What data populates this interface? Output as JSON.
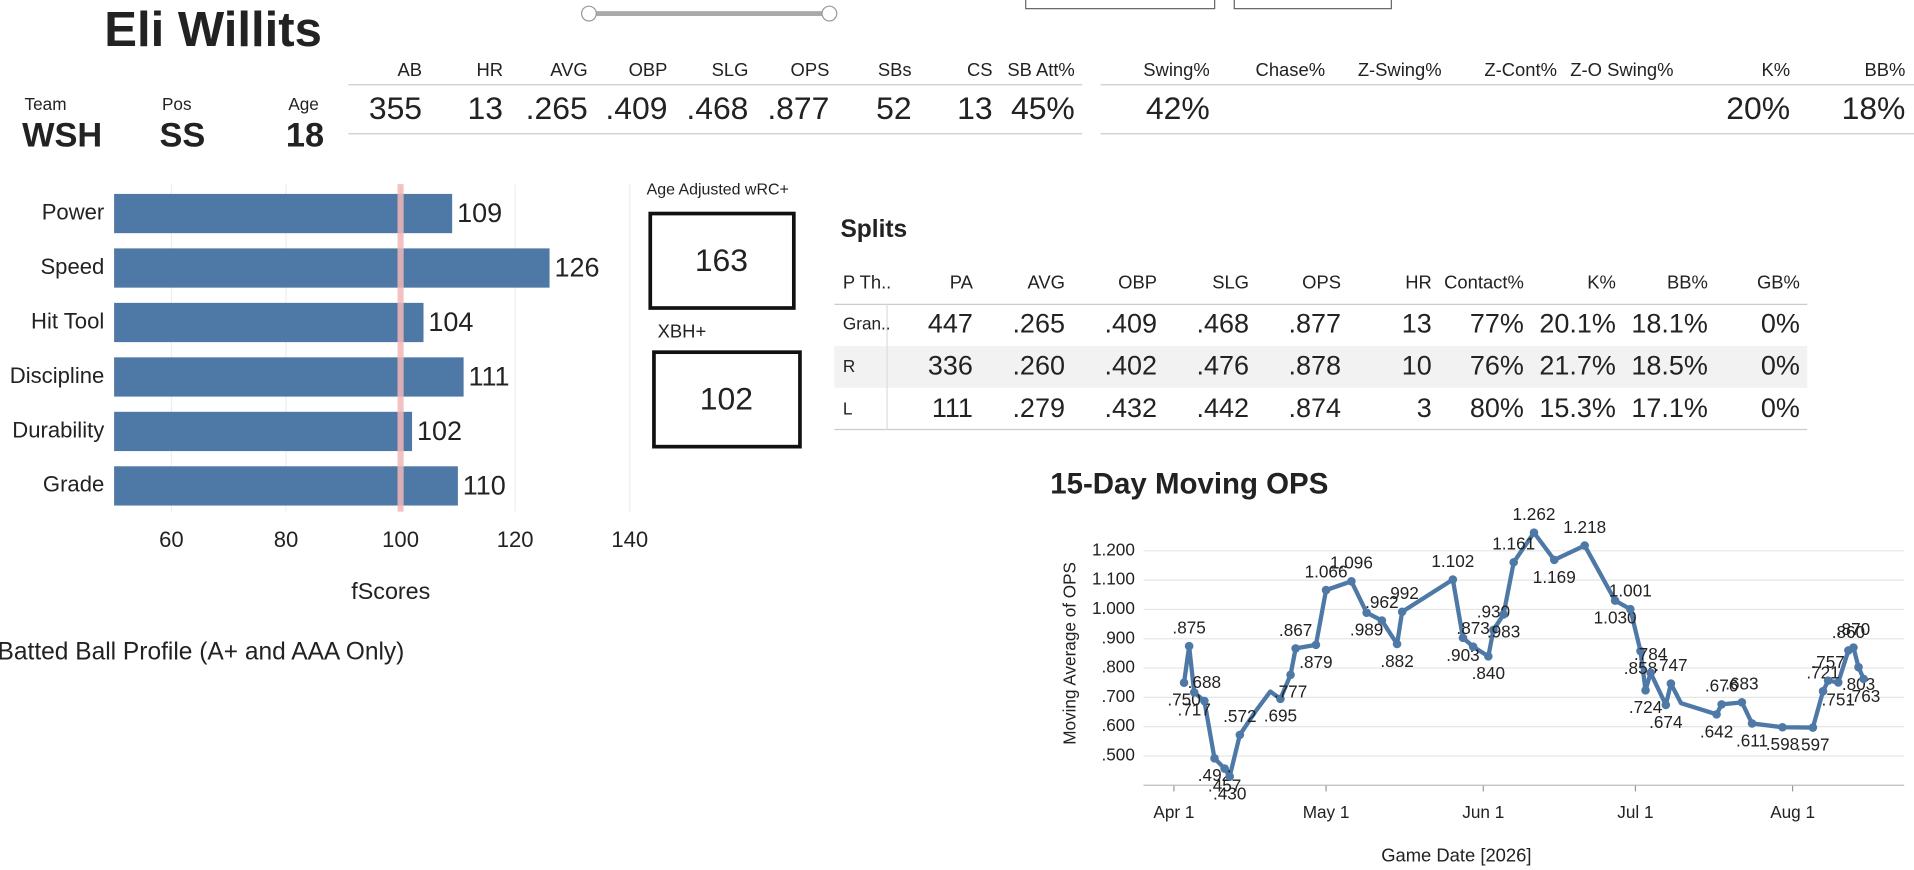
{
  "header": {
    "name": "Eli Willits",
    "team_label": "Team",
    "team": "WSH",
    "pos_label": "Pos",
    "pos": "SS",
    "age_label": "Age",
    "age": "18"
  },
  "batting": {
    "headers": [
      "AB",
      "HR",
      "AVG",
      "OBP",
      "SLG",
      "OPS",
      "SBs",
      "CS",
      "SB Att%"
    ],
    "values": [
      "355",
      "13",
      ".265",
      ".409",
      ".468",
      ".877",
      "52",
      "13",
      "45%"
    ]
  },
  "plate_discipline": {
    "headers": [
      "Swing%",
      "Chase%",
      "Z-Swing%",
      "Z-Cont%",
      "Z-O Swing%",
      "K%",
      "BB%"
    ],
    "values": [
      "42%",
      null,
      null,
      null,
      null,
      "20%",
      "18%"
    ]
  },
  "boxes": [
    {
      "label": "Age Adjusted wRC+",
      "value": "163"
    },
    {
      "label": "XBH+",
      "value": "102"
    }
  ],
  "splits": {
    "title": "Splits",
    "headers": [
      "P Th..",
      "PA",
      "AVG",
      "OBP",
      "SLG",
      "OPS",
      "HR",
      "Contact%",
      "K%",
      "BB%",
      "GB%"
    ],
    "rows": [
      [
        "Gran..",
        "447",
        ".265",
        ".409",
        ".468",
        ".877",
        "13",
        "77%",
        "20.1%",
        "18.1%",
        "0%"
      ],
      [
        "R",
        "336",
        ".260",
        ".402",
        ".476",
        ".878",
        "10",
        "76%",
        "21.7%",
        "18.5%",
        "0%"
      ],
      [
        "L",
        "111",
        ".279",
        ".432",
        ".442",
        ".874",
        "3",
        "80%",
        "15.3%",
        "17.1%",
        "0%"
      ]
    ]
  },
  "batted_ball_title": "Batted Ball Profile (A+ and AAA Only)",
  "chart_data": [
    {
      "type": "bar",
      "orientation": "horizontal",
      "categories": [
        "Power",
        "Speed",
        "Hit Tool",
        "Discipline",
        "Durability",
        "Grade"
      ],
      "values": [
        109,
        126,
        104,
        111,
        102,
        110
      ],
      "color": "#4e79a7",
      "xlim": [
        50,
        150
      ],
      "xticks": [
        60,
        80,
        100,
        120,
        140
      ],
      "x_label": "fScores",
      "reference_line": {
        "value": 100,
        "color": "#f2b8b8"
      },
      "grid": true
    },
    {
      "type": "line",
      "title": "15-Day Moving OPS",
      "x_label": "Game Date [2026]",
      "y_label": "Moving Average of OPS",
      "color": "#4e79a7",
      "grid": true,
      "x": [
        "2026-04-03",
        "2026-04-04",
        "2026-04-05",
        "2026-04-07",
        "2026-04-09",
        "2026-04-11",
        "2026-04-12",
        "2026-04-14",
        "2026-04-17",
        "2026-04-20",
        "2026-04-22",
        "2026-04-24",
        "2026-04-25",
        "2026-04-29",
        "2026-05-01",
        "2026-05-06",
        "2026-05-09",
        "2026-05-12",
        "2026-05-15",
        "2026-05-16",
        "2026-05-26",
        "2026-05-28",
        "2026-05-30",
        "2026-06-02",
        "2026-06-03",
        "2026-06-05",
        "2026-06-07",
        "2026-06-11",
        "2026-06-15",
        "2026-06-21",
        "2026-06-27",
        "2026-06-30",
        "2026-07-02",
        "2026-07-03",
        "2026-07-04",
        "2026-07-07",
        "2026-07-08",
        "2026-07-10",
        "2026-07-17",
        "2026-07-18",
        "2026-07-22",
        "2026-07-24",
        "2026-07-30",
        "2026-08-05",
        "2026-08-07",
        "2026-08-08",
        "2026-08-10",
        "2026-08-12",
        "2026-08-13",
        "2026-08-14",
        "2026-08-15"
      ],
      "values": [
        0.75,
        0.875,
        0.717,
        0.688,
        0.492,
        0.457,
        0.43,
        0.572,
        0.65,
        0.72,
        0.695,
        0.777,
        0.867,
        0.879,
        1.066,
        1.096,
        0.989,
        0.962,
        0.882,
        0.992,
        1.102,
        0.903,
        0.873,
        0.84,
        0.93,
        0.983,
        1.161,
        1.262,
        1.169,
        1.218,
        1.03,
        1.001,
        0.858,
        0.724,
        0.784,
        0.674,
        0.747,
        0.68,
        0.642,
        0.676,
        0.683,
        0.611,
        0.598,
        0.597,
        0.721,
        0.757,
        0.751,
        0.86,
        0.87,
        0.803,
        0.763
      ],
      "value_labels": [
        ".750",
        ".875",
        ".717",
        ".688",
        ".492",
        ".457",
        ".430",
        ".572",
        null,
        null,
        ".695",
        ".777",
        ".867",
        ".879",
        "1.066",
        "1.096",
        ".989",
        ".962",
        ".882",
        ".992",
        "1.102",
        ".903",
        ".873",
        ".840",
        ".930",
        ".983",
        "1.161",
        "1.262",
        "1.169",
        "1.218",
        "1.030",
        "1.001",
        ".858",
        ".724",
        ".784",
        ".674",
        ".747",
        null,
        ".642",
        ".676",
        ".683",
        ".611",
        ".598",
        ".597",
        ".721",
        ".757",
        ".751",
        ".860",
        ".870",
        ".803",
        ".763"
      ],
      "xlim": [
        "2026-03-26",
        "2026-08-23"
      ],
      "xticks": [
        {
          "value": "2026-04-01",
          "label": "Apr 1"
        },
        {
          "value": "2026-05-01",
          "label": "May 1"
        },
        {
          "value": "2026-06-01",
          "label": "Jun 1"
        },
        {
          "value": "2026-07-01",
          "label": "Jul 1"
        },
        {
          "value": "2026-08-01",
          "label": "Aug 1"
        }
      ],
      "ylim": [
        0.4,
        1.3
      ],
      "yticks": [
        {
          "value": 0.5,
          "label": ".500"
        },
        {
          "value": 0.6,
          "label": ".600"
        },
        {
          "value": 0.7,
          "label": ".700"
        },
        {
          "value": 0.8,
          "label": ".800"
        },
        {
          "value": 0.9,
          "label": ".900"
        },
        {
          "value": 1.0,
          "label": "1.000"
        },
        {
          "value": 1.1,
          "label": "1.100"
        },
        {
          "value": 1.2,
          "label": "1.200"
        }
      ]
    }
  ]
}
